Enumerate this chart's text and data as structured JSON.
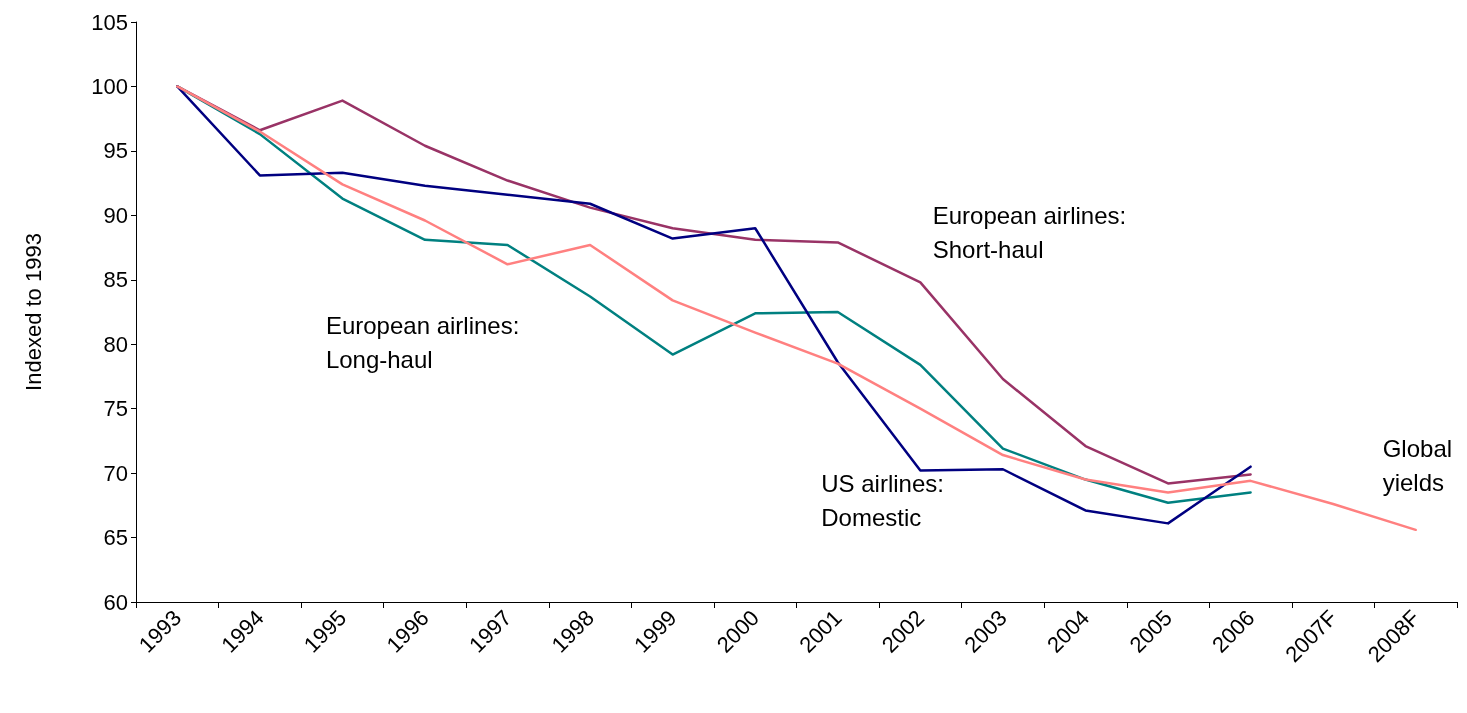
{
  "chart_data": {
    "type": "line",
    "ylabel": "Indexed to 1993",
    "categories": [
      "1993",
      "1994",
      "1995",
      "1996",
      "1997",
      "1998",
      "1999",
      "2000",
      "2001",
      "2002",
      "2003",
      "2004",
      "2005",
      "2006",
      "2007F",
      "2008F"
    ],
    "ylim": [
      60,
      105
    ],
    "yticks": [
      60,
      65,
      70,
      75,
      80,
      85,
      90,
      95,
      100,
      105
    ],
    "grid": false,
    "legend": false,
    "marker": "none",
    "line_style": "solid",
    "series": [
      {
        "name": "European airlines: Short-haul",
        "color": "#993366",
        "values": [
          100,
          96.6,
          98.9,
          95.4,
          92.7,
          90.6,
          89.0,
          88.1,
          87.9,
          84.8,
          77.3,
          72.1,
          69.2,
          69.9,
          null,
          null
        ]
      },
      {
        "name": "European airlines: Long-haul",
        "color": "#008080",
        "values": [
          100,
          96.3,
          91.3,
          88.1,
          87.7,
          83.7,
          79.2,
          82.4,
          82.5,
          78.4,
          71.9,
          69.5,
          67.7,
          68.5,
          null,
          null
        ]
      },
      {
        "name": "US airlines: Domestic",
        "color": "#000080",
        "values": [
          100,
          93.1,
          93.3,
          92.3,
          91.6,
          90.9,
          88.2,
          89.0,
          78.6,
          70.2,
          70.3,
          67.1,
          66.1,
          70.5,
          null,
          null
        ]
      },
      {
        "name": "Global yields",
        "color": "#ff8080",
        "values": [
          100,
          96.5,
          92.4,
          89.6,
          86.2,
          87.7,
          83.4,
          80.9,
          78.5,
          75.0,
          71.4,
          69.5,
          68.5,
          69.4,
          67.6,
          65.6
        ]
      }
    ]
  }
}
